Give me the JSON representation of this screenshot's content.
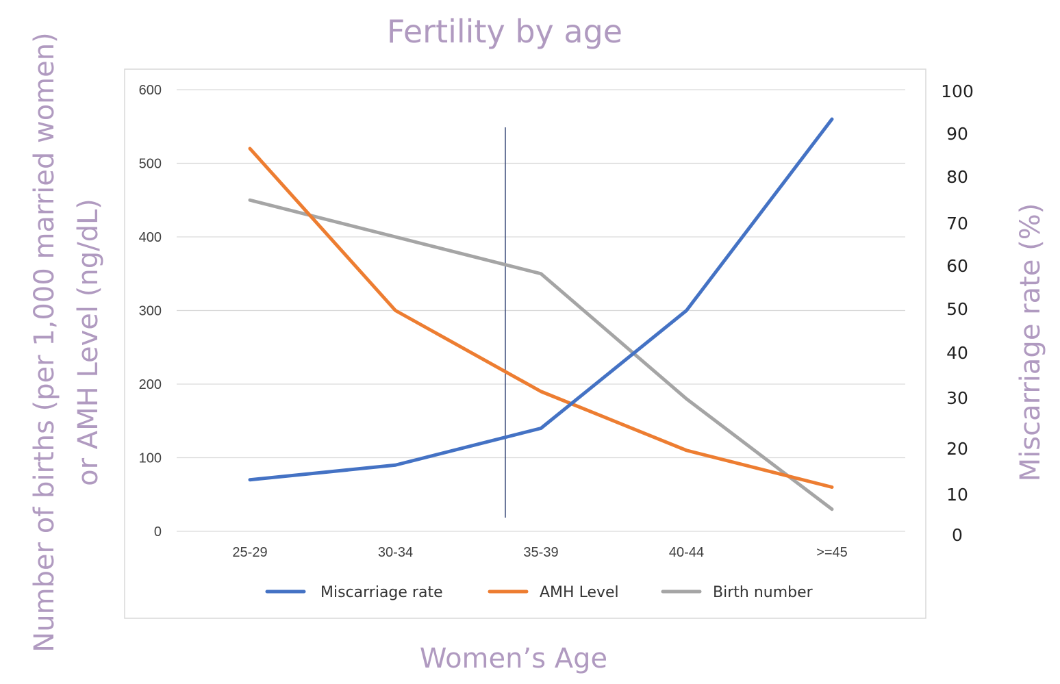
{
  "chart_data": {
    "type": "line",
    "title": "Fertility by age",
    "xlabel": "Women’s Age",
    "ylabel_left": "Number of births (per 1,000 married women) or AMH Level (ng/dL)",
    "ylabel_left_line1": "Number of births (per 1,000 married women)",
    "ylabel_left_line2": "or AMH Level (ng/dL)",
    "ylabel_right": "Miscarriage rate (%)",
    "categories": [
      "25-29",
      "30-34",
      "35-39",
      "40-44",
      ">=45"
    ],
    "ylim_left": [
      0,
      600
    ],
    "ylim_right": [
      0,
      100
    ],
    "left_ticks": [
      "0",
      "100",
      "200",
      "300",
      "400",
      "500",
      "600"
    ],
    "right_ticks": [
      "0",
      "10",
      "20",
      "30",
      "40",
      "50",
      "60",
      "70",
      "80",
      "90",
      "100"
    ],
    "grid": true,
    "legend_position": "bottom",
    "series": [
      {
        "name": "Miscarriage rate",
        "values": [
          70,
          90,
          140,
          300,
          560
        ],
        "color": "#4472c4"
      },
      {
        "name": "AMH Level",
        "values": [
          520,
          300,
          190,
          110,
          60
        ],
        "color": "#ed7d31"
      },
      {
        "name": "Birth number",
        "values": [
          450,
          400,
          350,
          180,
          30
        ],
        "color": "#a5a5a5"
      }
    ],
    "colors": {
      "text_accent": "#b09ac0",
      "marker_line": "#3a4a78"
    }
  }
}
